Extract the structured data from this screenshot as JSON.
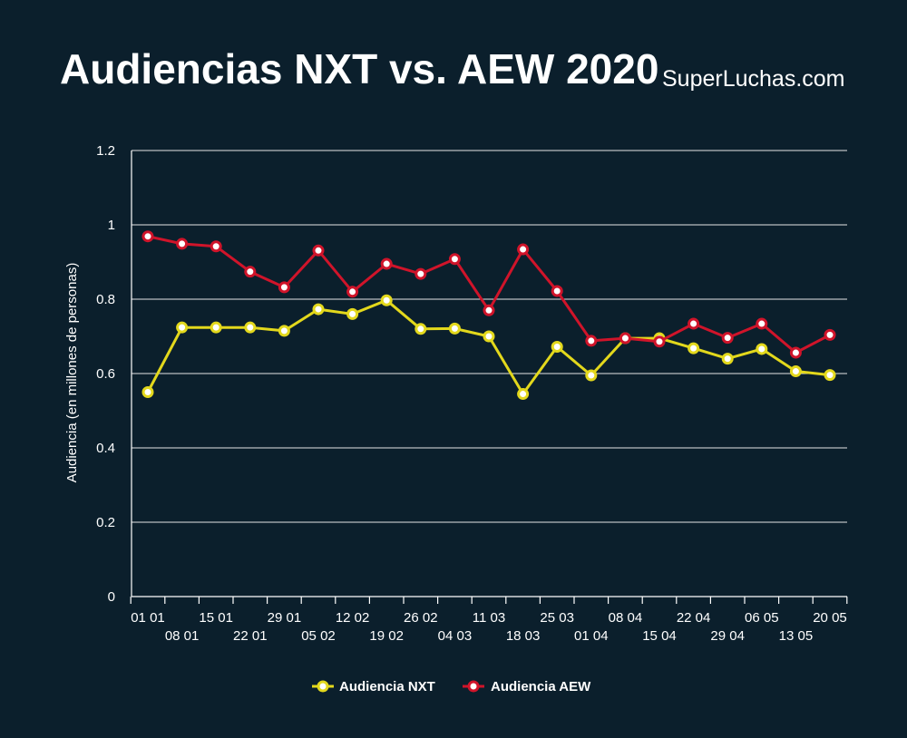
{
  "header": {
    "title": "Audiencias NXT vs. AEW 2020",
    "brand": "SuperLuchas.com"
  },
  "colors": {
    "background": "#0b1f2c",
    "nxt": "#e3d81c",
    "aew": "#d0142a",
    "marker_fill": "#ffffff",
    "grid": "#e6e6e6"
  },
  "chart_data": {
    "type": "line",
    "ylabel": "Audiencia (en millones de personas)",
    "xlabel": "",
    "ylim": [
      0,
      1.2
    ],
    "yticks": [
      "0",
      "0.2",
      "0.4",
      "0.6",
      "0.8",
      "1",
      "1.2"
    ],
    "grid": true,
    "legend_position": "bottom-center",
    "categories": [
      "01 01",
      "08 01",
      "15 01",
      "22 01",
      "29 01",
      "05 02",
      "12 02",
      "19 02",
      "26 02",
      "04 03",
      "11 03",
      "18 03",
      "25 03",
      "01 04",
      "08 04",
      "15 04",
      "22 04",
      "29 04",
      "06 05",
      "13 05",
      "20 05"
    ],
    "series": [
      {
        "name": "Audiencia NXT",
        "values": [
          0.55,
          0.724,
          0.724,
          0.724,
          0.715,
          0.773,
          0.76,
          0.797,
          0.72,
          0.721,
          0.7,
          0.545,
          0.672,
          0.595,
          0.695,
          0.695,
          0.668,
          0.64,
          0.666,
          0.606,
          0.596
        ]
      },
      {
        "name": "Audiencia AEW",
        "values": [
          0.969,
          0.949,
          0.942,
          0.874,
          0.832,
          0.931,
          0.82,
          0.895,
          0.868,
          0.908,
          0.77,
          0.934,
          0.822,
          0.688,
          0.695,
          0.686,
          0.734,
          0.696,
          0.734,
          0.656,
          0.704
        ]
      }
    ]
  }
}
